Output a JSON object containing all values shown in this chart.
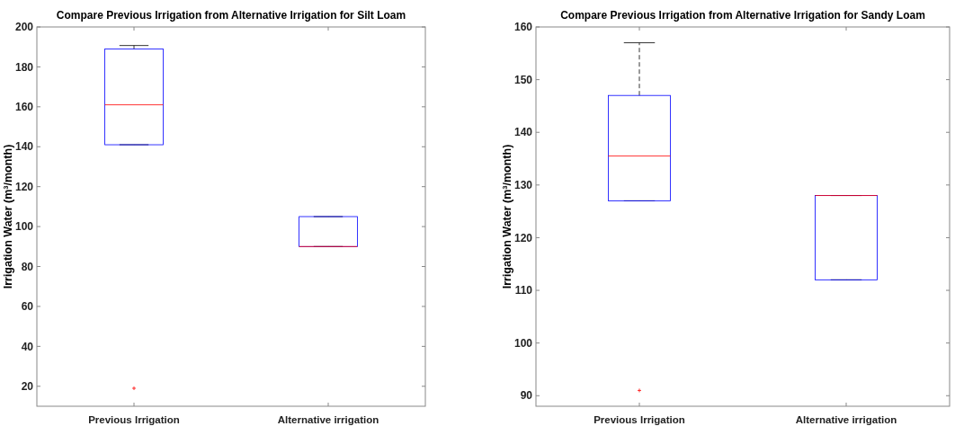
{
  "chart_data": [
    {
      "type": "box",
      "title": "Compare Previous Irrigation from Alternative Irrigation for Silt Loam",
      "ylabel": "Irrigation Water (m³/month)",
      "categories": [
        "Previous Irrigation",
        "Alternative irrigation"
      ],
      "ylim": [
        10,
        200
      ],
      "yticks": [
        20,
        40,
        60,
        80,
        100,
        120,
        140,
        160,
        180,
        200
      ],
      "marker": "cross",
      "line_style": "dashed",
      "series": [
        {
          "color": "#0000ff",
          "boxes": [
            {
              "low": 141,
              "q1": 141,
              "median": 161,
              "q3": 189,
              "high": 190.7,
              "outliers": [
                19
              ]
            },
            {
              "low": 90,
              "q1": 90,
              "median": 90,
              "q3": 105,
              "high": 105
            }
          ]
        }
      ]
    },
    {
      "type": "box",
      "title": "Compare Previous Irrigation from Alternative Irrigation for Sandy Loam",
      "ylabel": "Irrigation Water (m³/month)",
      "categories": [
        "Previous Irrigation",
        "Alternative irrigation"
      ],
      "ylim": [
        88,
        160
      ],
      "yticks": [
        90,
        100,
        110,
        120,
        130,
        140,
        150,
        160
      ],
      "marker": "cross",
      "line_style": "dashed",
      "series": [
        {
          "color": "#0000ff",
          "boxes": [
            {
              "low": 127,
              "q1": 127,
              "median": 135.5,
              "q3": 147,
              "high": 157,
              "outliers": [
                91
              ]
            },
            {
              "low": 112,
              "q1": 112,
              "median": 128,
              "q3": 128,
              "high": 128
            }
          ]
        }
      ]
    }
  ]
}
